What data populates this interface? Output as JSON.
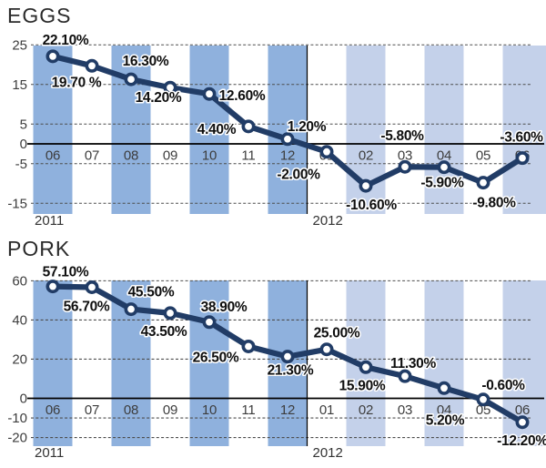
{
  "chart_data": [
    {
      "type": "line",
      "title": "EGGS",
      "unit": "%",
      "x_months": [
        "06",
        "07",
        "08",
        "09",
        "10",
        "11",
        "12",
        "01",
        "02",
        "03",
        "04",
        "05",
        "06"
      ],
      "years": [
        {
          "label": "2011",
          "start_month": "06"
        },
        {
          "label": "2012",
          "start_month": "01"
        }
      ],
      "values": [
        22.1,
        19.7,
        16.3,
        14.2,
        12.6,
        4.4,
        1.2,
        -2.0,
        -10.6,
        -5.8,
        -5.9,
        -9.8,
        -3.6
      ],
      "point_labels": [
        "22.10%",
        "19.70 %",
        "16.30%",
        "14.20%",
        "12.60%",
        "4.40%",
        "1.20%",
        "-2.00%",
        "-10.60%",
        "-5.80%",
        "-5.90%",
        "-9.80%",
        "-3.60%"
      ],
      "y_ticks": [
        25,
        15,
        5,
        0,
        -5,
        -15
      ],
      "ylim": [
        -17.7,
        25
      ],
      "grid": "dashed-horizontal",
      "zero_axis_solid": true,
      "legend": "none",
      "band_shading": {
        "2011": "medium-blue",
        "2012": "light-blue"
      }
    },
    {
      "type": "line",
      "title": "PORK",
      "unit": "%",
      "x_months": [
        "06",
        "07",
        "08",
        "09",
        "10",
        "11",
        "12",
        "01",
        "02",
        "03",
        "04",
        "05",
        "06"
      ],
      "years": [
        {
          "label": "2011",
          "start_month": "06"
        },
        {
          "label": "2012",
          "start_month": "01"
        }
      ],
      "values": [
        57.1,
        56.7,
        45.5,
        43.5,
        38.9,
        26.5,
        21.3,
        25.0,
        15.9,
        11.3,
        5.2,
        -0.6,
        -12.2
      ],
      "point_labels": [
        "57.10%",
        "56.70%",
        "45.50%",
        "43.50%",
        "38.90%",
        "26.50%",
        "21.30%",
        "25.00%",
        "15.90%",
        "11.30%",
        "5.20%",
        "-0.60%",
        "-12.20%"
      ],
      "y_ticks": [
        60,
        40,
        20,
        0,
        -10,
        -20
      ],
      "ylim": [
        -24.7,
        60
      ],
      "grid": "dashed-horizontal",
      "zero_axis_solid": true,
      "legend": "none",
      "band_shading": {
        "2011": "medium-blue",
        "2012": "light-blue"
      }
    }
  ],
  "colors": {
    "band_2011": "#8fb1dd",
    "band_2012": "#c4d1ea",
    "line": "#213c66",
    "marker_fill": "#ffffff",
    "grid": "#4d4d4d",
    "zero_line": "#000000",
    "divider": "#000000",
    "data_label": "#0e0e0e",
    "axis_text": "#3d3d3d",
    "title_text": "#2b2b2b",
    "background": "#ffffff"
  }
}
